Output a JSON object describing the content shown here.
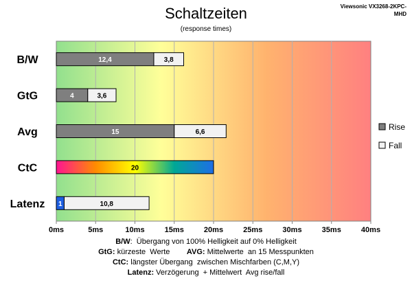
{
  "brand_lines": [
    "Viewsonic VX3268-2KPC-",
    "MHD"
  ],
  "chart_data": {
    "type": "bar",
    "orientation": "horizontal",
    "stacked": true,
    "title": "Schaltzeiten",
    "subtitle": "(response times)",
    "categories": [
      "B/W",
      "GtG",
      "Avg",
      "CtC",
      "Latenz"
    ],
    "series": [
      {
        "name": "Rise",
        "values": [
          12.4,
          4,
          15,
          20,
          1
        ],
        "labels": [
          "12,4",
          "4",
          "15",
          "20",
          "1"
        ],
        "color": "#7f7f7f"
      },
      {
        "name": "Fall",
        "values": [
          3.8,
          3.6,
          6.6,
          null,
          10.8
        ],
        "labels": [
          "3,8",
          "3,6",
          "6,6",
          "",
          "10,8"
        ],
        "color": "#f2f2f2"
      }
    ],
    "xlim": [
      0,
      40
    ],
    "x_ticks": [
      0,
      5,
      10,
      15,
      20,
      25,
      30,
      35,
      40
    ],
    "x_tick_labels": [
      "0ms",
      "5ms",
      "10ms",
      "15ms",
      "20ms",
      "25ms",
      "30ms",
      "35ms",
      "40ms"
    ],
    "background_gradient": [
      "#92e08e",
      "#ffff99",
      "#ffb36e",
      "#ff8080"
    ],
    "ctc_gradient": [
      "#ff1493",
      "#ff8c00",
      "#ffff00",
      "#00a896",
      "#1e6ee6"
    ],
    "latency_rise_color": "#1e5fe0",
    "legend": {
      "position": "right",
      "entries": [
        "Rise",
        "Fall"
      ]
    },
    "grid": true
  },
  "notes": [
    [
      {
        "t": "B/W",
        "b": true
      },
      {
        "t": ":  Übergang von 100% Helligkeit auf 0% Helligkeit",
        "b": false
      }
    ],
    [
      {
        "t": "GtG:",
        "b": true
      },
      {
        "t": " kürzeste  Werte        ",
        "b": false
      },
      {
        "t": "AVG:",
        "b": true
      },
      {
        "t": " Mittelwerte  an 15 Messpunkten",
        "b": false
      }
    ],
    [
      {
        "t": "CtC:",
        "b": true
      },
      {
        "t": " längster Übergang  zwischen Mischfarben (C,M,Y)",
        "b": false
      }
    ],
    [
      {
        "t": "Latenz:",
        "b": true
      },
      {
        "t": " Verzögerung  + Mittelwert  Avg rise/fall",
        "b": false
      }
    ]
  ]
}
